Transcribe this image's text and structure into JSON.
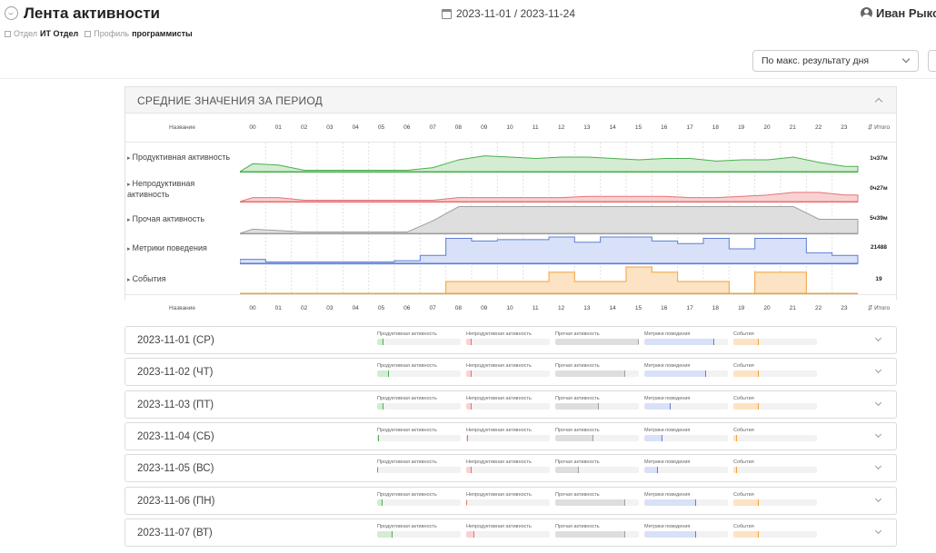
{
  "header": {
    "title": "Лента активности",
    "date_range": "2023-11-01 / 2023-11-24",
    "user_name": "Иван Рыков",
    "user_extra": "G"
  },
  "filters": {
    "dept_label": "Отдел",
    "dept_value": "ИТ Отдел",
    "profile_label": "Профиль",
    "profile_value": "программисты"
  },
  "sort": {
    "selected": "По макс. результату дня"
  },
  "summary": {
    "title": "СРЕДНИЕ ЗНАЧЕНИЯ ЗА ПЕРИОД",
    "name_header": "Название",
    "total_header": "Итого",
    "hours": [
      "00",
      "01",
      "02",
      "03",
      "04",
      "05",
      "06",
      "07",
      "08",
      "09",
      "10",
      "11",
      "12",
      "13",
      "14",
      "15",
      "16",
      "17",
      "18",
      "19",
      "20",
      "21",
      "22",
      "23"
    ],
    "metrics": [
      {
        "label": "Продуктивная активность",
        "total": "1ч37м",
        "color": "#4caf50",
        "fill": "#d3ecd2"
      },
      {
        "label": "Непродуктивная активность",
        "total": "0ч27м",
        "color": "#e57373",
        "fill": "#f8d2d2"
      },
      {
        "label": "Прочая активность",
        "total": "5ч39м",
        "color": "#9e9e9e",
        "fill": "#dedede"
      },
      {
        "label": "Метрики поведения",
        "total": "21488",
        "color": "#5c7fd6",
        "fill": "#d9e1f8"
      },
      {
        "label": "События",
        "total": "19",
        "color": "#f2a33a",
        "fill": "#fce3c3"
      }
    ]
  },
  "days": [
    {
      "date": "2023-11-01 (СР)",
      "bars": [
        0.08,
        0.06,
        1.0,
        0.84,
        0.3
      ]
    },
    {
      "date": "2023-11-02 (ЧТ)",
      "bars": [
        0.14,
        0.06,
        0.84,
        0.74,
        0.3
      ]
    },
    {
      "date": "2023-11-03 (ПТ)",
      "bars": [
        0.08,
        0.06,
        0.52,
        0.32,
        0.3
      ]
    },
    {
      "date": "2023-11-04 (СБ)",
      "bars": [
        0.02,
        0.02,
        0.46,
        0.22,
        0.04
      ]
    },
    {
      "date": "2023-11-05 (ВС)",
      "bars": [
        0.01,
        0.06,
        0.28,
        0.16,
        0.04
      ]
    },
    {
      "date": "2023-11-06 (ПН)",
      "bars": [
        0.06,
        0.01,
        0.84,
        0.62,
        0.3
      ]
    },
    {
      "date": "2023-11-07 (ВТ)",
      "bars": [
        0.18,
        0.1,
        0.84,
        0.62,
        0.3
      ]
    }
  ],
  "mini_labels": [
    "Продуктивная активность",
    "Непродуктивная активность",
    "Прочая активность",
    "Метрики поведения",
    "События"
  ],
  "series_hourly": {
    "productive": [
      0.3,
      0.25,
      0.05,
      0.05,
      0.05,
      0.05,
      0.05,
      0.15,
      0.45,
      0.6,
      0.55,
      0.5,
      0.55,
      0.55,
      0.5,
      0.45,
      0.5,
      0.5,
      0.4,
      0.45,
      0.45,
      0.55,
      0.35,
      0.2
    ],
    "unproductive": [
      0.15,
      0.15,
      0.05,
      0.05,
      0.05,
      0.05,
      0.05,
      0.05,
      0.15,
      0.15,
      0.15,
      0.15,
      0.15,
      0.2,
      0.2,
      0.2,
      0.2,
      0.15,
      0.15,
      0.2,
      0.25,
      0.35,
      0.35,
      0.25
    ],
    "other": [
      0.15,
      0.1,
      0.05,
      0.05,
      0.05,
      0.05,
      0.05,
      0.45,
      0.95,
      0.95,
      0.95,
      0.95,
      0.95,
      0.95,
      0.95,
      0.95,
      0.95,
      0.95,
      0.95,
      0.95,
      0.95,
      0.95,
      0.5,
      0.5
    ],
    "behavior": [
      0.15,
      0.05,
      0.05,
      0.05,
      0.05,
      0.05,
      0.1,
      0.3,
      0.95,
      0.85,
      0.9,
      0.9,
      1.0,
      0.8,
      1.0,
      1.0,
      0.85,
      0.75,
      0.95,
      0.55,
      0.95,
      0.95,
      0.4,
      0.3
    ],
    "events": [
      0,
      0,
      0,
      0,
      0,
      0,
      0,
      0,
      0.45,
      0.45,
      0.45,
      0.45,
      0.8,
      0.45,
      0.45,
      1.0,
      0.8,
      0.45,
      0.45,
      0,
      0.8,
      0.8,
      0,
      0
    ]
  }
}
